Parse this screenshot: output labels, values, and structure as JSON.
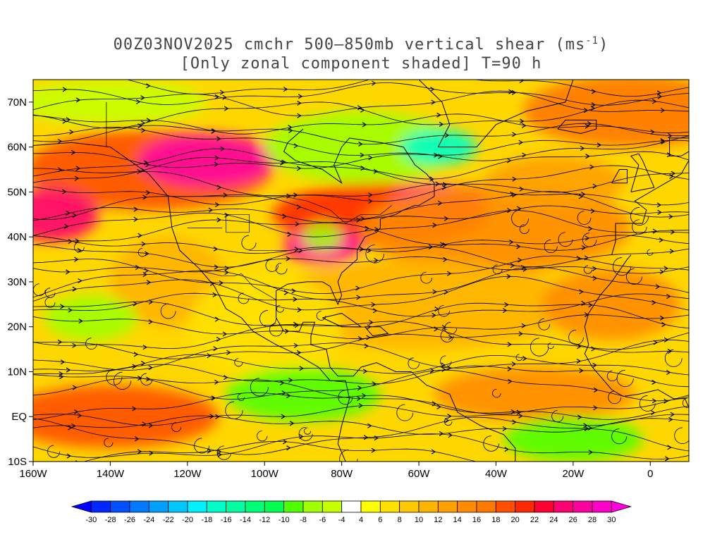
{
  "title": {
    "line1": "00Z03NOV2025 cmchr 500–850mb vertical shear (ms",
    "line1_sup": "-1",
    "line1_end": ")",
    "line2": "[Only zonal component shaded] T=90 h"
  },
  "map": {
    "lon_range": [
      -160,
      10
    ],
    "lat_range": [
      -10,
      75
    ],
    "x_tick_labels": [
      "160W",
      "140W",
      "120W",
      "100W",
      "80W",
      "60W",
      "40W",
      "20W",
      "0"
    ],
    "x_tick_values": [
      -160,
      -140,
      -120,
      -100,
      -80,
      -60,
      -40,
      -20,
      0
    ],
    "y_tick_labels": [
      "70N",
      "60N",
      "50N",
      "40N",
      "30N",
      "20N",
      "10N",
      "EQ",
      "10S"
    ],
    "y_tick_values": [
      70,
      60,
      50,
      40,
      30,
      20,
      10,
      0,
      -10
    ],
    "blobs": [
      {
        "lon": -130,
        "lat": 55,
        "rx": 32,
        "ry": 9,
        "v": 18
      },
      {
        "lon": -115,
        "lat": 57,
        "rx": 18,
        "ry": 6,
        "v": 26
      },
      {
        "lon": -155,
        "lat": 45,
        "rx": 12,
        "ry": 6,
        "v": 24
      },
      {
        "lon": -70,
        "lat": 45,
        "rx": 28,
        "ry": 7,
        "v": 20
      },
      {
        "lon": -55,
        "lat": 48,
        "rx": 12,
        "ry": 4,
        "v": 26
      },
      {
        "lon": -85,
        "lat": 38,
        "rx": 10,
        "ry": 4,
        "v": 26
      },
      {
        "lon": -40,
        "lat": 42,
        "rx": 35,
        "ry": 10,
        "v": 14
      },
      {
        "lon": -5,
        "lat": 68,
        "rx": 28,
        "ry": 8,
        "v": 16
      },
      {
        "lon": -25,
        "lat": 52,
        "rx": 18,
        "ry": 6,
        "v": 12
      },
      {
        "lon": -140,
        "lat": 0,
        "rx": 28,
        "ry": 7,
        "v": 18
      },
      {
        "lon": -30,
        "lat": 5,
        "rx": 26,
        "ry": 6,
        "v": 14
      },
      {
        "lon": -60,
        "lat": 25,
        "rx": 40,
        "ry": 10,
        "v": 10
      },
      {
        "lon": -125,
        "lat": 30,
        "rx": 15,
        "ry": 10,
        "v": 10
      },
      {
        "lon": -100,
        "lat": 20,
        "rx": 20,
        "ry": 12,
        "v": 6
      },
      {
        "lon": -10,
        "lat": 25,
        "rx": 18,
        "ry": 8,
        "v": 14
      },
      {
        "lon": -90,
        "lat": 5,
        "rx": 20,
        "ry": 6,
        "v": -10
      },
      {
        "lon": -75,
        "lat": 60,
        "rx": 25,
        "ry": 8,
        "v": -8
      },
      {
        "lon": -55,
        "lat": 60,
        "rx": 10,
        "ry": 4,
        "v": -18
      },
      {
        "lon": -140,
        "lat": 70,
        "rx": 25,
        "ry": 5,
        "v": -6
      },
      {
        "lon": -20,
        "lat": -5,
        "rx": 18,
        "ry": 5,
        "v": -10
      },
      {
        "lon": -145,
        "lat": 22,
        "rx": 12,
        "ry": 5,
        "v": -8
      },
      {
        "lon": -85,
        "lat": 40,
        "rx": 5,
        "ry": 3,
        "v": -8
      }
    ]
  },
  "colorbar": {
    "labels": [
      "-30",
      "-28",
      "-26",
      "-24",
      "-22",
      "-20",
      "-18",
      "-16",
      "-14",
      "-12",
      "-10",
      "-8",
      "-6",
      "-4",
      "4",
      "6",
      "8",
      "10",
      "12",
      "14",
      "16",
      "18",
      "20",
      "22",
      "24",
      "26",
      "28",
      "30"
    ],
    "colors": [
      "#0000ff",
      "#0028ff",
      "#0050ff",
      "#0078ff",
      "#00a0ff",
      "#00c8ff",
      "#00f0ff",
      "#00ffc8",
      "#00ffa0",
      "#00ff78",
      "#00ff50",
      "#50ff00",
      "#a0ff00",
      "#c8ff00",
      "#ffffff",
      "#ffff00",
      "#ffe100",
      "#ffc800",
      "#ffb400",
      "#ffa000",
      "#ff8c00",
      "#ff7800",
      "#ff5000",
      "#ff2800",
      "#ff0030",
      "#ff0070",
      "#ff00a0",
      "#ff00c8",
      "#ff00e0"
    ]
  }
}
